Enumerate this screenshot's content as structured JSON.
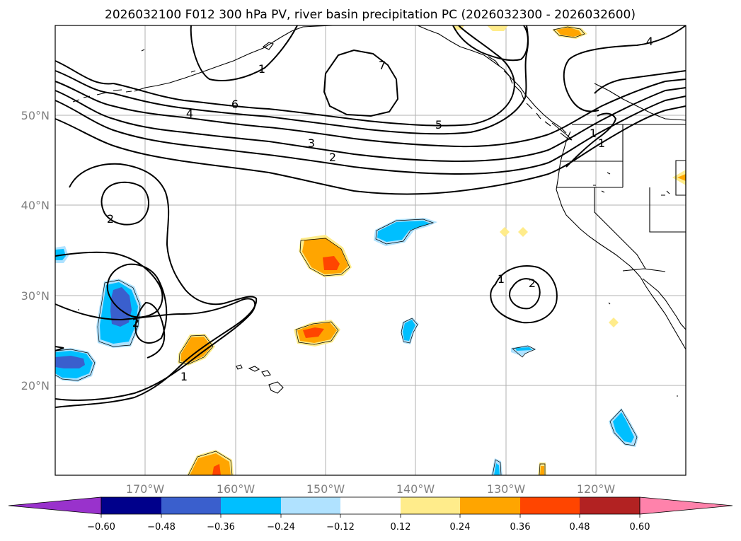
{
  "title": "2026032100 F012 300 hPa PV, river basin precipitation PC (2026032300 - 2026032600)",
  "map": {
    "lon_range": [
      -180,
      -110
    ],
    "lat_range": [
      10,
      60
    ],
    "lon_ticks": [
      -170,
      -160,
      -150,
      -140,
      -130,
      -120
    ],
    "lat_ticks": [
      20,
      30,
      40,
      50
    ],
    "lon_tick_labels": [
      "170°W",
      "160°W",
      "150°W",
      "140°W",
      "130°W",
      "120°W"
    ],
    "lat_tick_labels": [
      "20°N",
      "30°N",
      "40°N",
      "50°N"
    ]
  },
  "contour_labels": [
    "1",
    "1",
    "1",
    "1",
    "1",
    "2",
    "2",
    "2",
    "2",
    "3",
    "4",
    "4",
    "5",
    "6",
    "7"
  ],
  "colorbar": {
    "tick_labels": [
      "−0.60",
      "−0.48",
      "−0.36",
      "−0.24",
      "−0.12",
      "0.12",
      "0.24",
      "0.36",
      "0.48",
      "0.60"
    ],
    "colors": [
      "#9932cc",
      "#00008b",
      "#3a5fcd",
      "#00bfff",
      "#b0e2ff",
      "#ffffff",
      "#ffec8b",
      "#ffa500",
      "#ff4500",
      "#b22222",
      "#ff82ab"
    ]
  },
  "shading_colors": {
    "neg1": "#b0e2ff",
    "neg2": "#00bfff",
    "neg3": "#3a5fcd",
    "pos1": "#ffec8b",
    "pos2": "#ffa500",
    "pos3": "#ff4500"
  }
}
